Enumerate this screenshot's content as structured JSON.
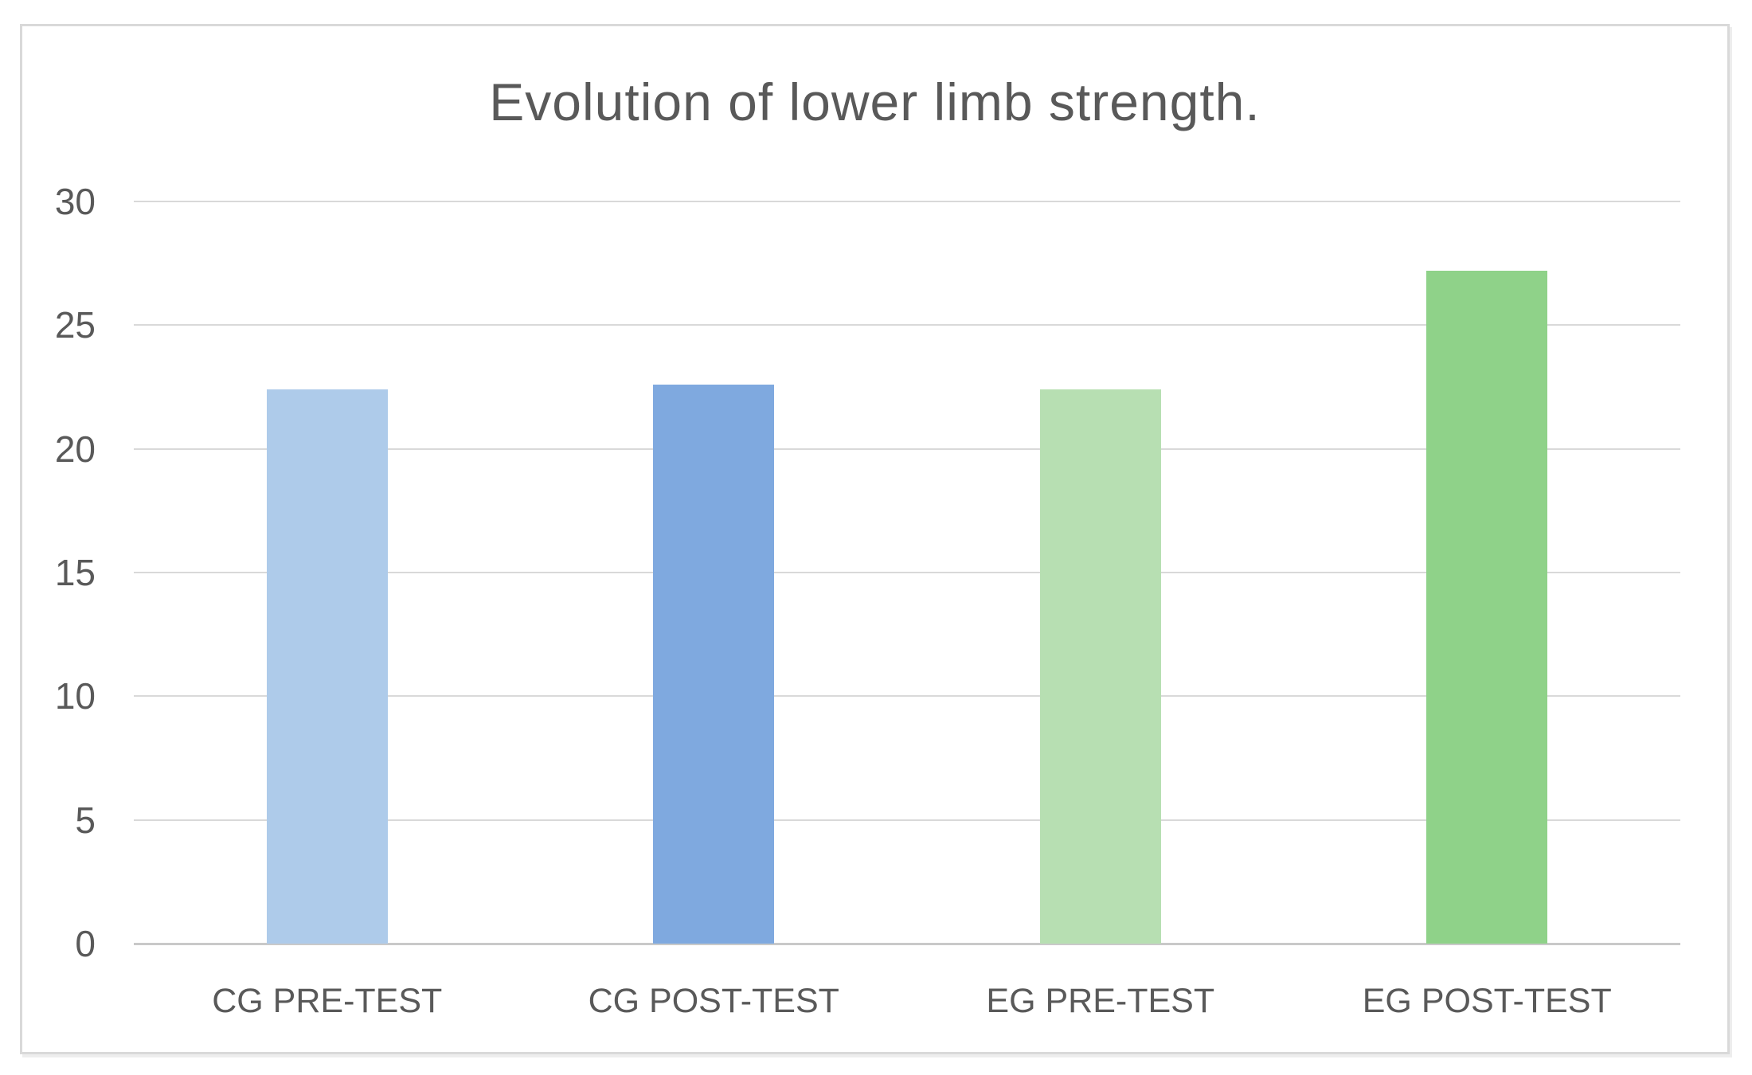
{
  "chart_data": {
    "type": "bar",
    "title": "Evolution of lower limb strength.",
    "categories": [
      "CG PRE-TEST",
      "CG POST-TEST",
      "EG PRE-TEST",
      "EG POST-TEST"
    ],
    "values": [
      22.4,
      22.6,
      22.4,
      27.2
    ],
    "bar_colors": [
      "#aecbea",
      "#7fa9df",
      "#b7dfb2",
      "#8fd289"
    ],
    "ylim": [
      0,
      30
    ],
    "yticks": [
      0,
      5,
      10,
      15,
      20,
      25,
      30
    ],
    "grid": true,
    "legend": false,
    "xlabel": "",
    "ylabel": ""
  },
  "colors": {
    "title_text": "#595959",
    "tick_text": "#595959",
    "gridline": "#d9d9d9",
    "axis_line": "#c9c9c9",
    "frame_border": "#d9d9d9",
    "background": "#ffffff"
  }
}
